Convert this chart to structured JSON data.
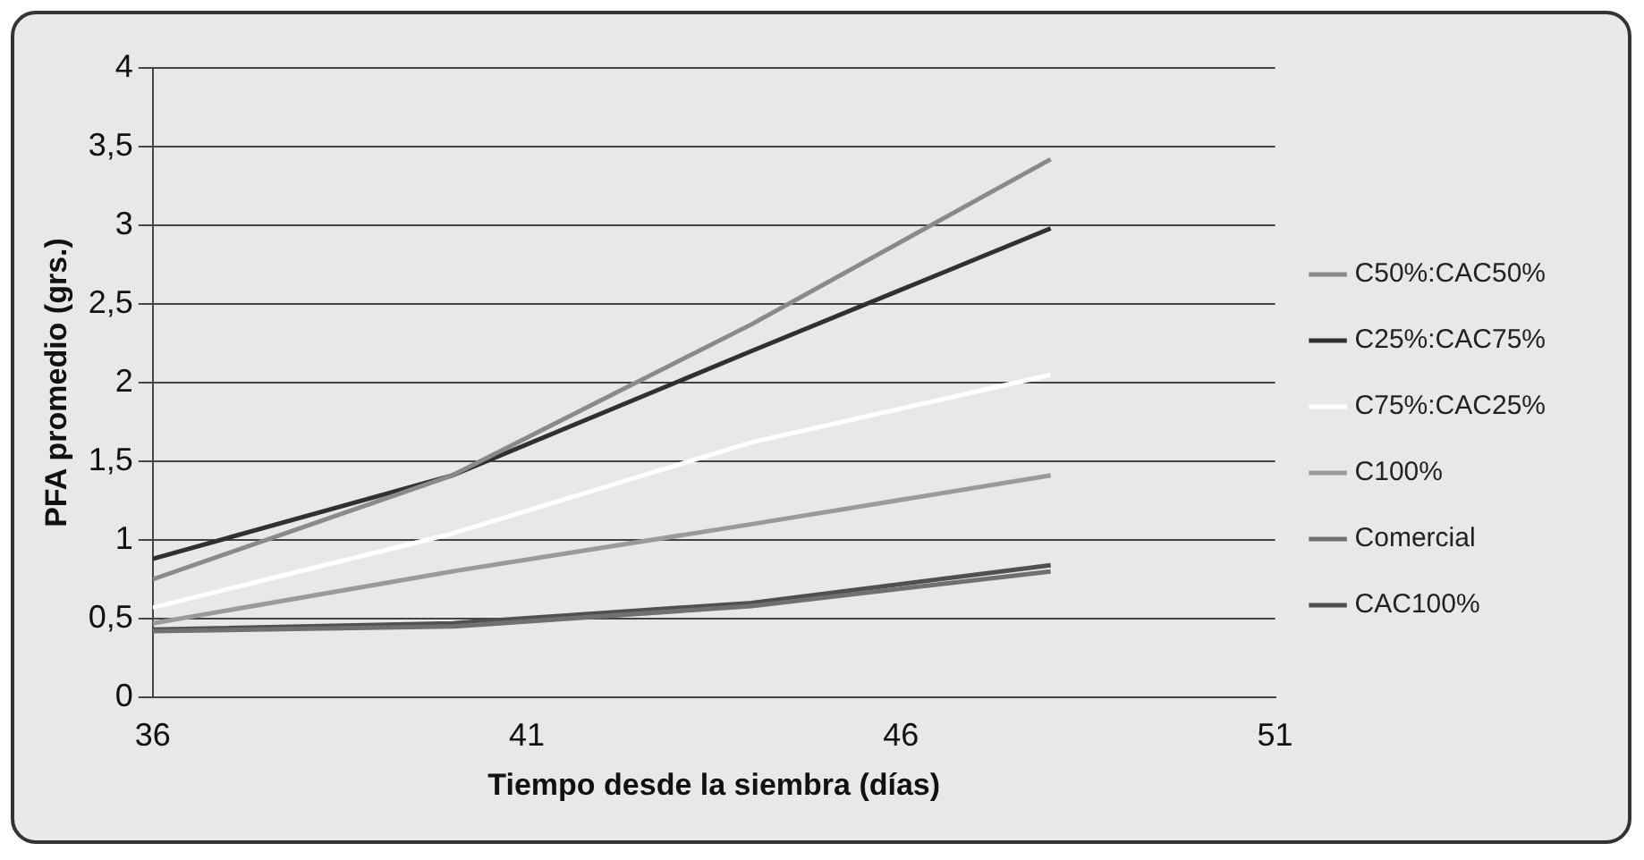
{
  "chart_data": {
    "type": "line",
    "xlabel": "Tiempo desde la siembra (días)",
    "ylabel": "PFA promedio (grs.)",
    "x": [
      36,
      40,
      44,
      48
    ],
    "series": [
      {
        "name": "C50%:CAC50%",
        "color": "#8a8a8a",
        "values": [
          0.75,
          1.41,
          2.37,
          3.42
        ]
      },
      {
        "name": "C25%:CAC75%",
        "color": "#303030",
        "values": [
          0.88,
          1.41,
          2.2,
          2.98
        ]
      },
      {
        "name": "C75%:CAC25%",
        "color": "#ffffff",
        "values": [
          0.57,
          1.04,
          1.62,
          2.05
        ]
      },
      {
        "name": "C100%",
        "color": "#9a9a9a",
        "values": [
          0.47,
          0.8,
          1.1,
          1.41
        ]
      },
      {
        "name": "Comercial",
        "color": "#707070",
        "values": [
          0.42,
          0.45,
          0.58,
          0.8
        ]
      },
      {
        "name": "CAC100%",
        "color": "#505050",
        "values": [
          0.43,
          0.47,
          0.6,
          0.84
        ]
      }
    ],
    "xlim": [
      36,
      51
    ],
    "xticks": [
      36,
      41,
      46,
      51
    ],
    "ylim": [
      0,
      4
    ],
    "yticks": [
      0,
      {
        "value": 0.5,
        "label": "0,5"
      },
      1,
      {
        "value": 1.5,
        "label": "1,5"
      },
      2,
      {
        "value": 2.5,
        "label": "2,5"
      },
      3,
      {
        "value": 3.5,
        "label": "3,5"
      },
      4
    ],
    "grid": "y",
    "legend": "right",
    "marker": "none",
    "line_style": "solid"
  }
}
